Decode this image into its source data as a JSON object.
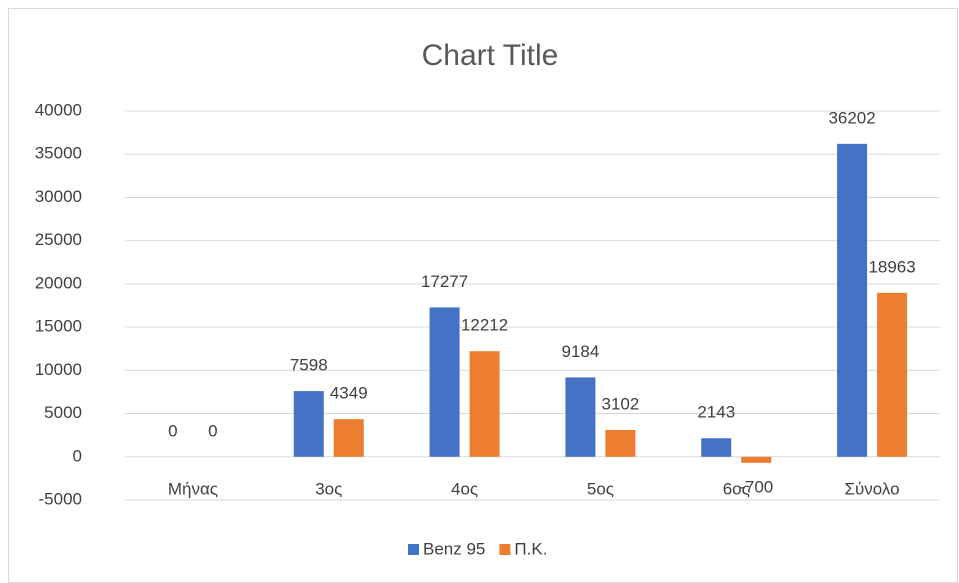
{
  "chart_data": {
    "type": "bar",
    "title": "Chart Title",
    "categories": [
      "Μήνας",
      "3ος",
      "4ος",
      "5ος",
      "6ος",
      "Σύνολο"
    ],
    "series": [
      {
        "name": "Benz 95",
        "color": "#4472c4",
        "values": [
          0,
          7598,
          17277,
          9184,
          2143,
          36202
        ]
      },
      {
        "name": "Π.Κ.",
        "color": "#ed7d31",
        "values": [
          0,
          4349,
          12212,
          3102,
          -700,
          18963
        ]
      }
    ],
    "ylim": [
      -5000,
      40000
    ],
    "yticks": [
      -5000,
      0,
      5000,
      10000,
      15000,
      20000,
      25000,
      30000,
      35000,
      40000
    ],
    "grid": true,
    "legend": "bottom"
  }
}
